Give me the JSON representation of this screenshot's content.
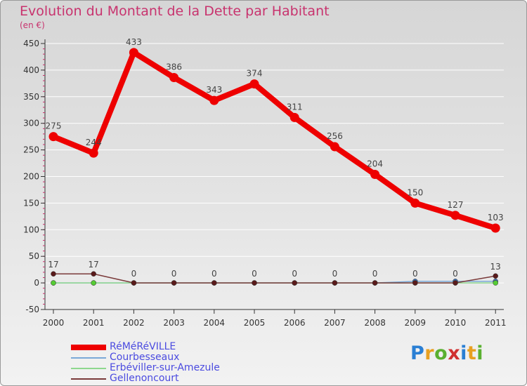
{
  "title": "Evolution du Montant de la Dette par Habitant",
  "subtitle": "(en €)",
  "logo": "Proxiti",
  "colors": {
    "title": "#c8336e",
    "axis_text": "#333333",
    "legend_text": "#4b4be0"
  },
  "chart_data": {
    "type": "line",
    "title": "Evolution du Montant de la Dette par Habitant",
    "ylabel": "(en €)",
    "xlabel": "",
    "categories": [
      "2000",
      "2001",
      "2002",
      "2003",
      "2004",
      "2005",
      "2006",
      "2007",
      "2008",
      "2009",
      "2010",
      "2011"
    ],
    "ylim": [
      -50,
      450
    ],
    "yticks": [
      -50,
      0,
      50,
      100,
      150,
      200,
      250,
      300,
      350,
      400,
      450
    ],
    "series": [
      {
        "name": "RéMéRéVILLE",
        "values": [
          275,
          244,
          433,
          386,
          343,
          374,
          311,
          256,
          204,
          150,
          127,
          103
        ],
        "labels": [
          "275",
          "244",
          "433",
          "386",
          "343",
          "374",
          "311",
          "256",
          "204",
          "150",
          "127",
          "103"
        ],
        "color": "#ee0000",
        "marker": "#ee0000"
      },
      {
        "name": "Courbesseaux",
        "values": [
          0,
          0,
          0,
          0,
          0,
          0,
          0,
          0,
          0,
          3,
          3,
          3
        ],
        "labels": [],
        "color": "#7aa9d8",
        "marker": "#3f6fb0"
      },
      {
        "name": "Erbéviller-sur-Amezule",
        "values": [
          0,
          0,
          0,
          0,
          0,
          0,
          0,
          0,
          0,
          0,
          0,
          0
        ],
        "labels": [],
        "color": "#8ed88e",
        "marker": "#55cc33"
      },
      {
        "name": "Gellenoncourt",
        "values": [
          17,
          17,
          0,
          0,
          0,
          0,
          0,
          0,
          0,
          0,
          0,
          13
        ],
        "labels": [
          "17",
          "17",
          "0",
          "0",
          "0",
          "0",
          "0",
          "0",
          "0",
          "0",
          "0",
          "13"
        ],
        "color": "#7a3a3a",
        "marker": "#5a1a1a"
      }
    ]
  }
}
